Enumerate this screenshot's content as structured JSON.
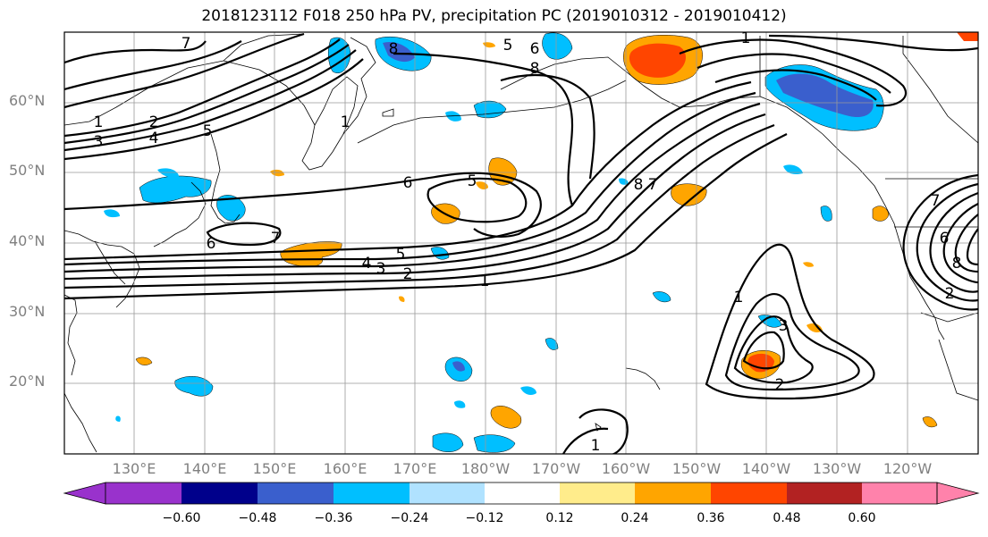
{
  "title": "2018123112 F018 250 hPa PV, precipitation PC (2019010312 - 2019010412)",
  "lat_labels": [
    "60°N",
    "50°N",
    "40°N",
    "30°N",
    "20°N"
  ],
  "lon_labels": [
    "130°E",
    "140°E",
    "150°E",
    "160°E",
    "170°E",
    "180°W",
    "170°W",
    "160°W",
    "150°W",
    "140°W",
    "130°W",
    "120°W"
  ],
  "colorbar": {
    "tick_labels": [
      "−0.60",
      "−0.48",
      "−0.36",
      "−0.24",
      "−0.12",
      "0.12",
      "0.24",
      "0.36",
      "0.48",
      "0.60"
    ],
    "colors": [
      "#9932CC",
      "#00008B",
      "#3A5FCD",
      "#00BFFF",
      "#B0E2FF",
      "#FFFFFF",
      "#FFEC8B",
      "#FFA500",
      "#FF4500",
      "#B22222",
      "#FF82AB"
    ]
  },
  "pv_contour_labels": {
    "west_1": "1",
    "west_2": "2",
    "west_3": "3",
    "west_4": "4",
    "west_5": "5",
    "nw_7": "7",
    "nw_1": "1",
    "nw_3": "3",
    "top_8": "8",
    "top_5": "5",
    "top_6": "6",
    "top_8b": "8",
    "c_6": "6",
    "c_5": "5",
    "jp_6": "6",
    "jp_7": "7",
    "jet_5": "5",
    "jet_4": "4",
    "jet_3": "3",
    "jet_2": "2",
    "jet_1": "1",
    "ne_8": "8",
    "ne_7": "7",
    "ne_1": "1",
    "s_1": "1",
    "s_2": "2",
    "s_3": "3",
    "s_1b": "1",
    "e_7": "7",
    "e_6": "6",
    "e_8": "8",
    "e_2": "2"
  }
}
